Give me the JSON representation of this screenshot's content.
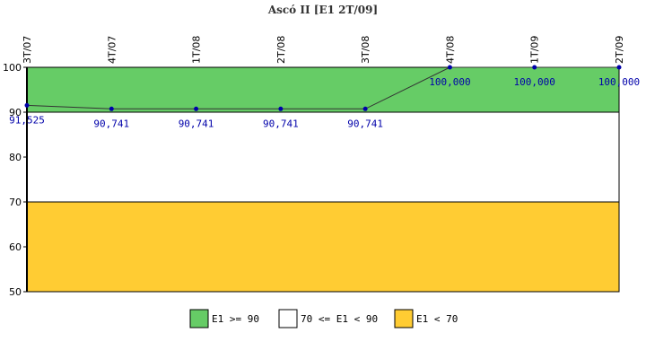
{
  "chart_data": {
    "type": "line",
    "title": "Ascó II [E1 2T/09]",
    "x": [
      "3T/07",
      "4T/07",
      "1T/08",
      "2T/08",
      "3T/08",
      "4T/08",
      "1T/09",
      "2T/09"
    ],
    "series": [
      {
        "values": [
          91.525,
          90.741,
          90.741,
          90.741,
          90.741,
          100.0,
          100.0,
          100.0
        ],
        "labels": [
          "91,525",
          "90,741",
          "90,741",
          "90,741",
          "90,741",
          "100,000",
          "100,000",
          "100,000"
        ]
      }
    ],
    "yticks": [
      "50",
      "60",
      "70",
      "80",
      "90",
      "100"
    ],
    "ylim": [
      50,
      100
    ],
    "bands": [
      {
        "from": 90,
        "to": 100,
        "color": "#66cc66",
        "label": "E1 >= 90"
      },
      {
        "from": 70,
        "to": 90,
        "color": "#ffffff",
        "label": "70 <= E1 < 90"
      },
      {
        "from": 50,
        "to": 70,
        "color": "#ffcc33",
        "label": "E1 < 70"
      }
    ],
    "line_color": "#333333",
    "marker_color": "#0000aa",
    "grid": false,
    "legend_position": "bottom"
  }
}
